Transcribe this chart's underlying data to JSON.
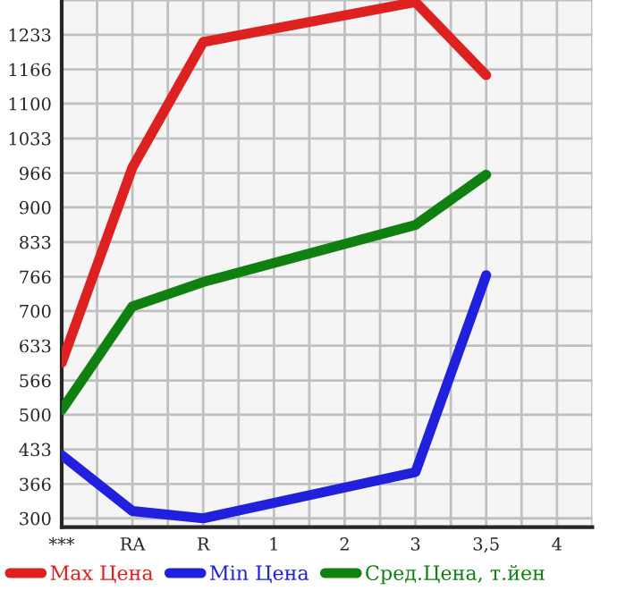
{
  "chart_data": {
    "type": "line",
    "categories": [
      "***",
      "RA",
      "R",
      "1",
      "2",
      "3",
      "3,5",
      "4"
    ],
    "series": [
      {
        "name": "Max Цена",
        "color": "#dd2020",
        "values": [
          600,
          977,
          1219,
          null,
          null,
          1296,
          1155,
          null
        ]
      },
      {
        "name": "Min Цена",
        "color": "#2020dd",
        "values": [
          422,
          314,
          300,
          null,
          null,
          389,
          769,
          null
        ]
      },
      {
        "name": "Сред.Цена, т.йен",
        "color": "#108010",
        "values": [
          509,
          709,
          756,
          null,
          null,
          866,
          963,
          null
        ]
      }
    ],
    "ylim": [
      283,
      1300
    ],
    "yticks": [
      300,
      366,
      433,
      500,
      566,
      633,
      700,
      766,
      833,
      900,
      966,
      1033,
      1100,
      1166,
      1233
    ],
    "grid": true,
    "legend": "bottom",
    "marker": "none",
    "line_style": "solid"
  }
}
